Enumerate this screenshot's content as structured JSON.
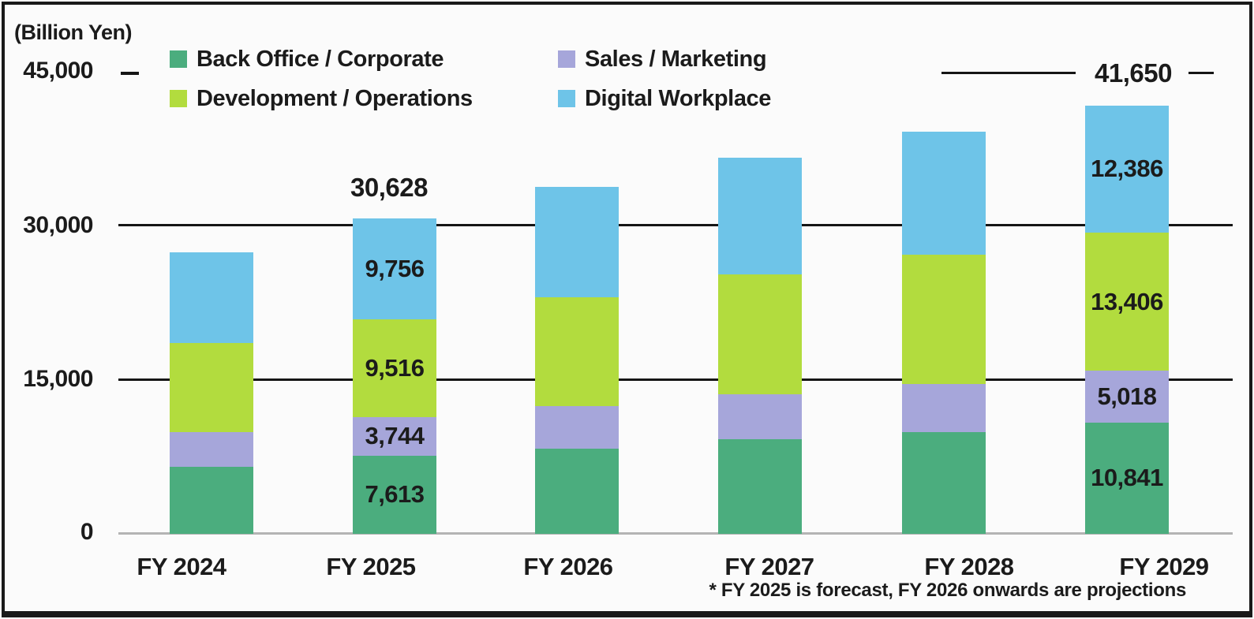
{
  "unit_label": "(Billion Yen)",
  "y_axis": {
    "ticks": [
      "45,000",
      "30,000",
      "15,000",
      "0"
    ]
  },
  "legend": {
    "items": [
      {
        "label": "Back Office / Corporate",
        "color": "#4bad7e"
      },
      {
        "label": "Sales / Marketing",
        "color": "#a6a6da"
      },
      {
        "label": "Development / Operations",
        "color": "#b2dc3e"
      },
      {
        "label": "Digital Workplace",
        "color": "#6ec4e8"
      }
    ]
  },
  "annotations": {
    "fy2025_total": "30,628",
    "fy2029_total": "41,650",
    "footnote": "* FY 2025 is forecast, FY 2026 onwards are projections"
  },
  "chart_data": {
    "type": "bar",
    "stacked": true,
    "title": "",
    "unit": "Billion Yen",
    "categories": [
      "FY 2024",
      "FY 2025",
      "FY 2026",
      "FY 2027",
      "FY 2028",
      "FY 2029"
    ],
    "series": [
      {
        "name": "Back Office / Corporate",
        "color": "#4bad7e",
        "values": [
          6500,
          7613,
          8300,
          9200,
          9900,
          10841
        ]
      },
      {
        "name": "Sales / Marketing",
        "color": "#a6a6da",
        "values": [
          3400,
          3744,
          4100,
          4400,
          4700,
          5018
        ]
      },
      {
        "name": "Development / Operations",
        "color": "#b2dc3e",
        "values": [
          8650,
          9516,
          10600,
          11600,
          12500,
          13406
        ]
      },
      {
        "name": "Digital Workplace",
        "color": "#6ec4e8",
        "values": [
          8800,
          9756,
          10700,
          11400,
          12000,
          12386
        ]
      }
    ],
    "labeled_categories": [
      "FY 2025",
      "FY 2029"
    ],
    "segment_labels": {
      "FY 2025": [
        "7,613",
        "3,744",
        "9,516",
        "9,756"
      ],
      "FY 2029": [
        "10,841",
        "5,018",
        "13,406",
        "12,386"
      ]
    },
    "totals": {
      "FY 2025": 30628,
      "FY 2029": 41650
    },
    "ylim": [
      0,
      45000
    ],
    "yticks": [
      0,
      15000,
      30000,
      45000
    ],
    "grid": "horizontal",
    "legend_position": "top"
  }
}
